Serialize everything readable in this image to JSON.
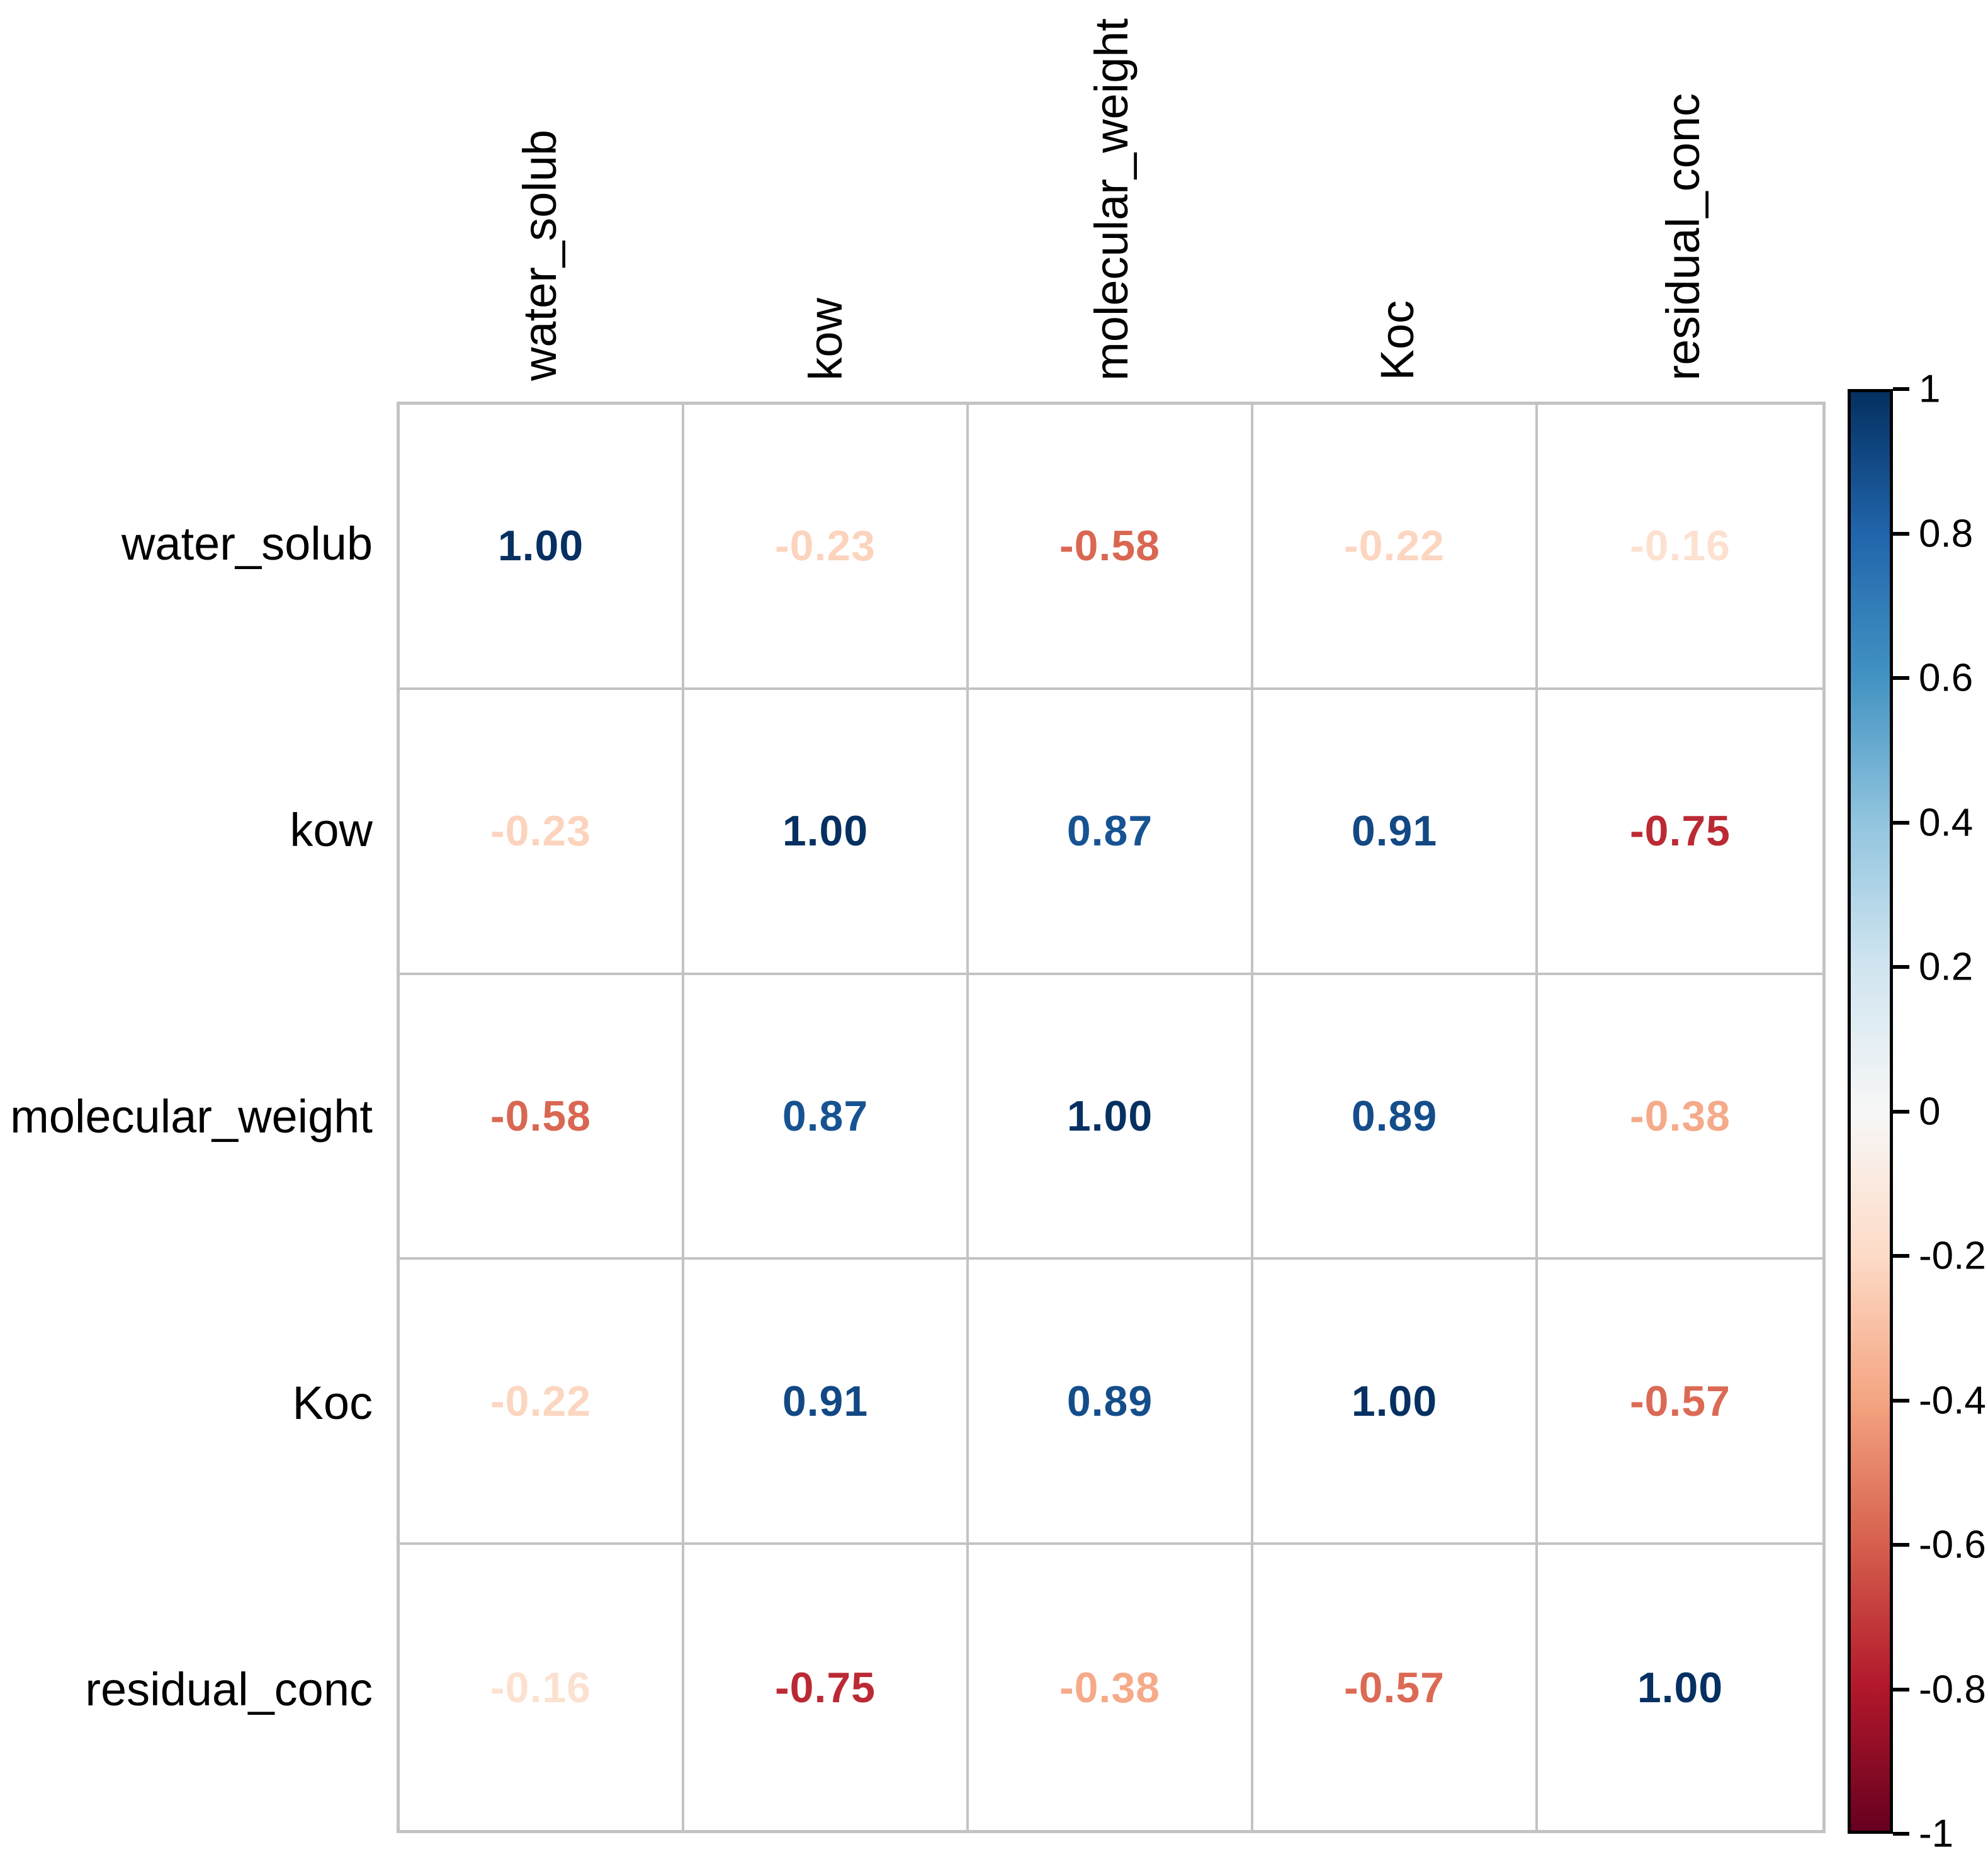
{
  "chart_data": {
    "type": "heatmap",
    "subtype": "correlation-matrix",
    "title": "",
    "variables": [
      "water_solub",
      "kow",
      "molecular_weight",
      "Koc",
      "residual_conc"
    ],
    "matrix": [
      [
        "1.00",
        "-0.23",
        "-0.58",
        "-0.22",
        "-0.16"
      ],
      [
        "-0.23",
        "1.00",
        "0.87",
        "0.91",
        "-0.75"
      ],
      [
        "-0.58",
        "0.87",
        "1.00",
        "0.89",
        "-0.38"
      ],
      [
        "-0.22",
        "0.91",
        "0.89",
        "1.00",
        "-0.57"
      ],
      [
        "-0.16",
        "-0.75",
        "-0.38",
        "-0.57",
        "1.00"
      ]
    ],
    "cell_background": "#ffffff",
    "grid_color": "#c3c3c3",
    "label_color": "#000000",
    "colorbar": {
      "position": "right",
      "min": -1,
      "max": 1,
      "tick_labels": [
        "1",
        "0.8",
        "0.6",
        "0.4",
        "0.2",
        "0",
        "-0.2",
        "-0.4",
        "-0.6",
        "-0.8",
        "-1"
      ],
      "border_color": "#000000",
      "palette_stops_max_to_min": [
        "#053061",
        "#2166ac",
        "#4393c3",
        "#92c5de",
        "#d1e5f0",
        "#f7f7f7",
        "#fddbc7",
        "#f4a582",
        "#d6604d",
        "#b2182b",
        "#67001f"
      ]
    },
    "legend_position": "right",
    "grid_on": true
  }
}
